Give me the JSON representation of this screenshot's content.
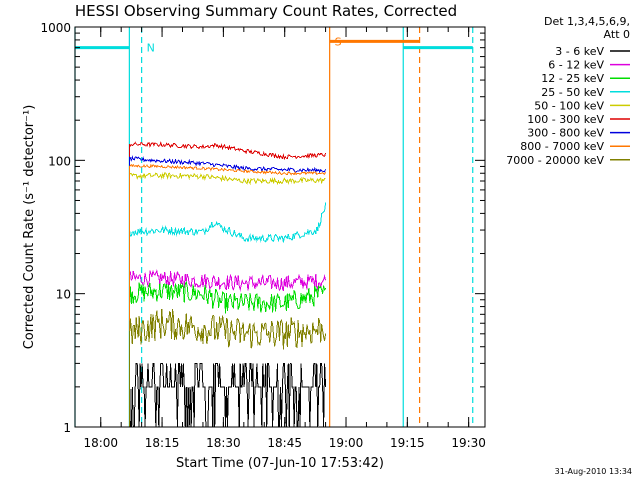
{
  "chart_data": {
    "type": "line",
    "title": "HESSI Observing Summary Count Rates, Corrected",
    "xlabel": "Start Time (07-Jun-10 17:53:42)",
    "ylabel": "Corrected Count Rate (s⁻¹ detector⁻¹)",
    "yscale": "log",
    "ylim": [
      1,
      1000
    ],
    "yticks": [
      {
        "value": 1,
        "label": "1"
      },
      {
        "value": 10,
        "label": "10"
      },
      {
        "value": 100,
        "label": "100"
      },
      {
        "value": 1000,
        "label": "1000"
      }
    ],
    "xlim": [
      "17:53:42",
      "19:34:00"
    ],
    "xticks": [
      "18:00",
      "18:15",
      "18:30",
      "18:45",
      "19:00",
      "19:15",
      "19:30"
    ],
    "legend_title": [
      "Det 1,3,4,5,6,9,",
      "Att 0"
    ],
    "legend_position": "outside-right",
    "footer_date": "31-Aug-2010 13:34",
    "series": [
      {
        "name": "3 - 6 keV",
        "color": "#000000",
        "base": 2.0,
        "noise": 0.15,
        "jumpy": true,
        "t": [
          "18:07",
          "18:15",
          "18:25",
          "18:35",
          "18:45",
          "18:55"
        ],
        "values": [
          2,
          3,
          2,
          3,
          2,
          2
        ]
      },
      {
        "name": "6 - 12 keV",
        "color": "#dd00dd",
        "base": 13,
        "noise": 0.06,
        "t": [
          "18:07",
          "18:15",
          "18:25",
          "18:35",
          "18:45",
          "18:55"
        ],
        "values": [
          13,
          13,
          12.5,
          12,
          12,
          12.5
        ]
      },
      {
        "name": "12 - 25 keV",
        "color": "#00dd00",
        "base": 10,
        "noise": 0.08,
        "t": [
          "18:07",
          "18:15",
          "18:25",
          "18:30",
          "18:35",
          "18:45",
          "18:55"
        ],
        "values": [
          10,
          10.5,
          10,
          8.5,
          8.5,
          8.5,
          10
        ]
      },
      {
        "name": "25 - 50 keV",
        "color": "#00dddd",
        "base": 29,
        "noise": 0.03,
        "t": [
          "18:07",
          "18:15",
          "18:25",
          "18:28",
          "18:29",
          "18:35",
          "18:45",
          "18:53",
          "18:55"
        ],
        "values": [
          29,
          30,
          29,
          35,
          32,
          26,
          26,
          30,
          45
        ]
      },
      {
        "name": "50 - 100 keV",
        "color": "#cccc00",
        "base": 75,
        "noise": 0.02,
        "t": [
          "18:07",
          "18:15",
          "18:25",
          "18:35",
          "18:45",
          "18:55"
        ],
        "values": [
          76,
          77,
          76,
          70,
          70,
          71
        ]
      },
      {
        "name": "100 - 300 keV",
        "color": "#dd0000",
        "base": 130,
        "noise": 0.015,
        "t": [
          "18:07",
          "18:15",
          "18:25",
          "18:28",
          "18:35",
          "18:45",
          "18:55"
        ],
        "values": [
          132,
          131,
          126,
          130,
          118,
          106,
          110
        ]
      },
      {
        "name": "300 - 800 keV",
        "color": "#0000dd",
        "base": 100,
        "noise": 0.015,
        "t": [
          "18:07",
          "18:15",
          "18:25",
          "18:35",
          "18:45",
          "18:55"
        ],
        "values": [
          103,
          99,
          95,
          87,
          85,
          84
        ]
      },
      {
        "name": "800 - 7000 keV",
        "color": "#ff7700",
        "base": 90,
        "noise": 0.01,
        "t": [
          "18:07",
          "18:15",
          "18:25",
          "18:35",
          "18:45",
          "18:55"
        ],
        "values": [
          91,
          90,
          87,
          83,
          80,
          80
        ]
      },
      {
        "name": "7000 - 20000 keV",
        "color": "#808000",
        "base": 5,
        "noise": 0.12,
        "t": [
          "18:07",
          "18:15",
          "18:25",
          "18:35",
          "18:45",
          "18:55"
        ],
        "values": [
          5,
          6,
          5.5,
          5,
          5,
          5.5
        ]
      }
    ],
    "orbit_markers": [
      {
        "type": "vline",
        "t": "17:53:42",
        "style": "solid",
        "color": "#00dddd"
      },
      {
        "type": "vline",
        "t": "18:07",
        "style": "solid",
        "color": "#00dddd"
      },
      {
        "type": "vline",
        "t": "18:10",
        "style": "dashed",
        "color": "#00dddd"
      },
      {
        "type": "vline",
        "t": "18:56",
        "style": "solid",
        "color": "#ff7700"
      },
      {
        "type": "vline",
        "t": "19:14",
        "style": "solid",
        "color": "#00dddd"
      },
      {
        "type": "vline",
        "t": "19:18",
        "style": "dashed",
        "color": "#ff7700"
      },
      {
        "type": "vline",
        "t": "19:31",
        "style": "dashed",
        "color": "#00dddd"
      },
      {
        "type": "hbar",
        "t0": "17:53:42",
        "t1": "18:07",
        "value": 700,
        "color": "#00dddd"
      },
      {
        "type": "hbar",
        "t0": "19:14",
        "t1": "19:31",
        "value": 700,
        "color": "#00dddd"
      },
      {
        "type": "hbar",
        "t0": "18:56",
        "t1": "19:18",
        "value": 780,
        "color": "#ff7700"
      }
    ],
    "annotations": [
      {
        "text": "N",
        "t": "18:10",
        "value": 700,
        "color": "#00dddd"
      },
      {
        "text": "S",
        "t": "18:56",
        "value": 780,
        "color": "#ff7700"
      }
    ]
  }
}
